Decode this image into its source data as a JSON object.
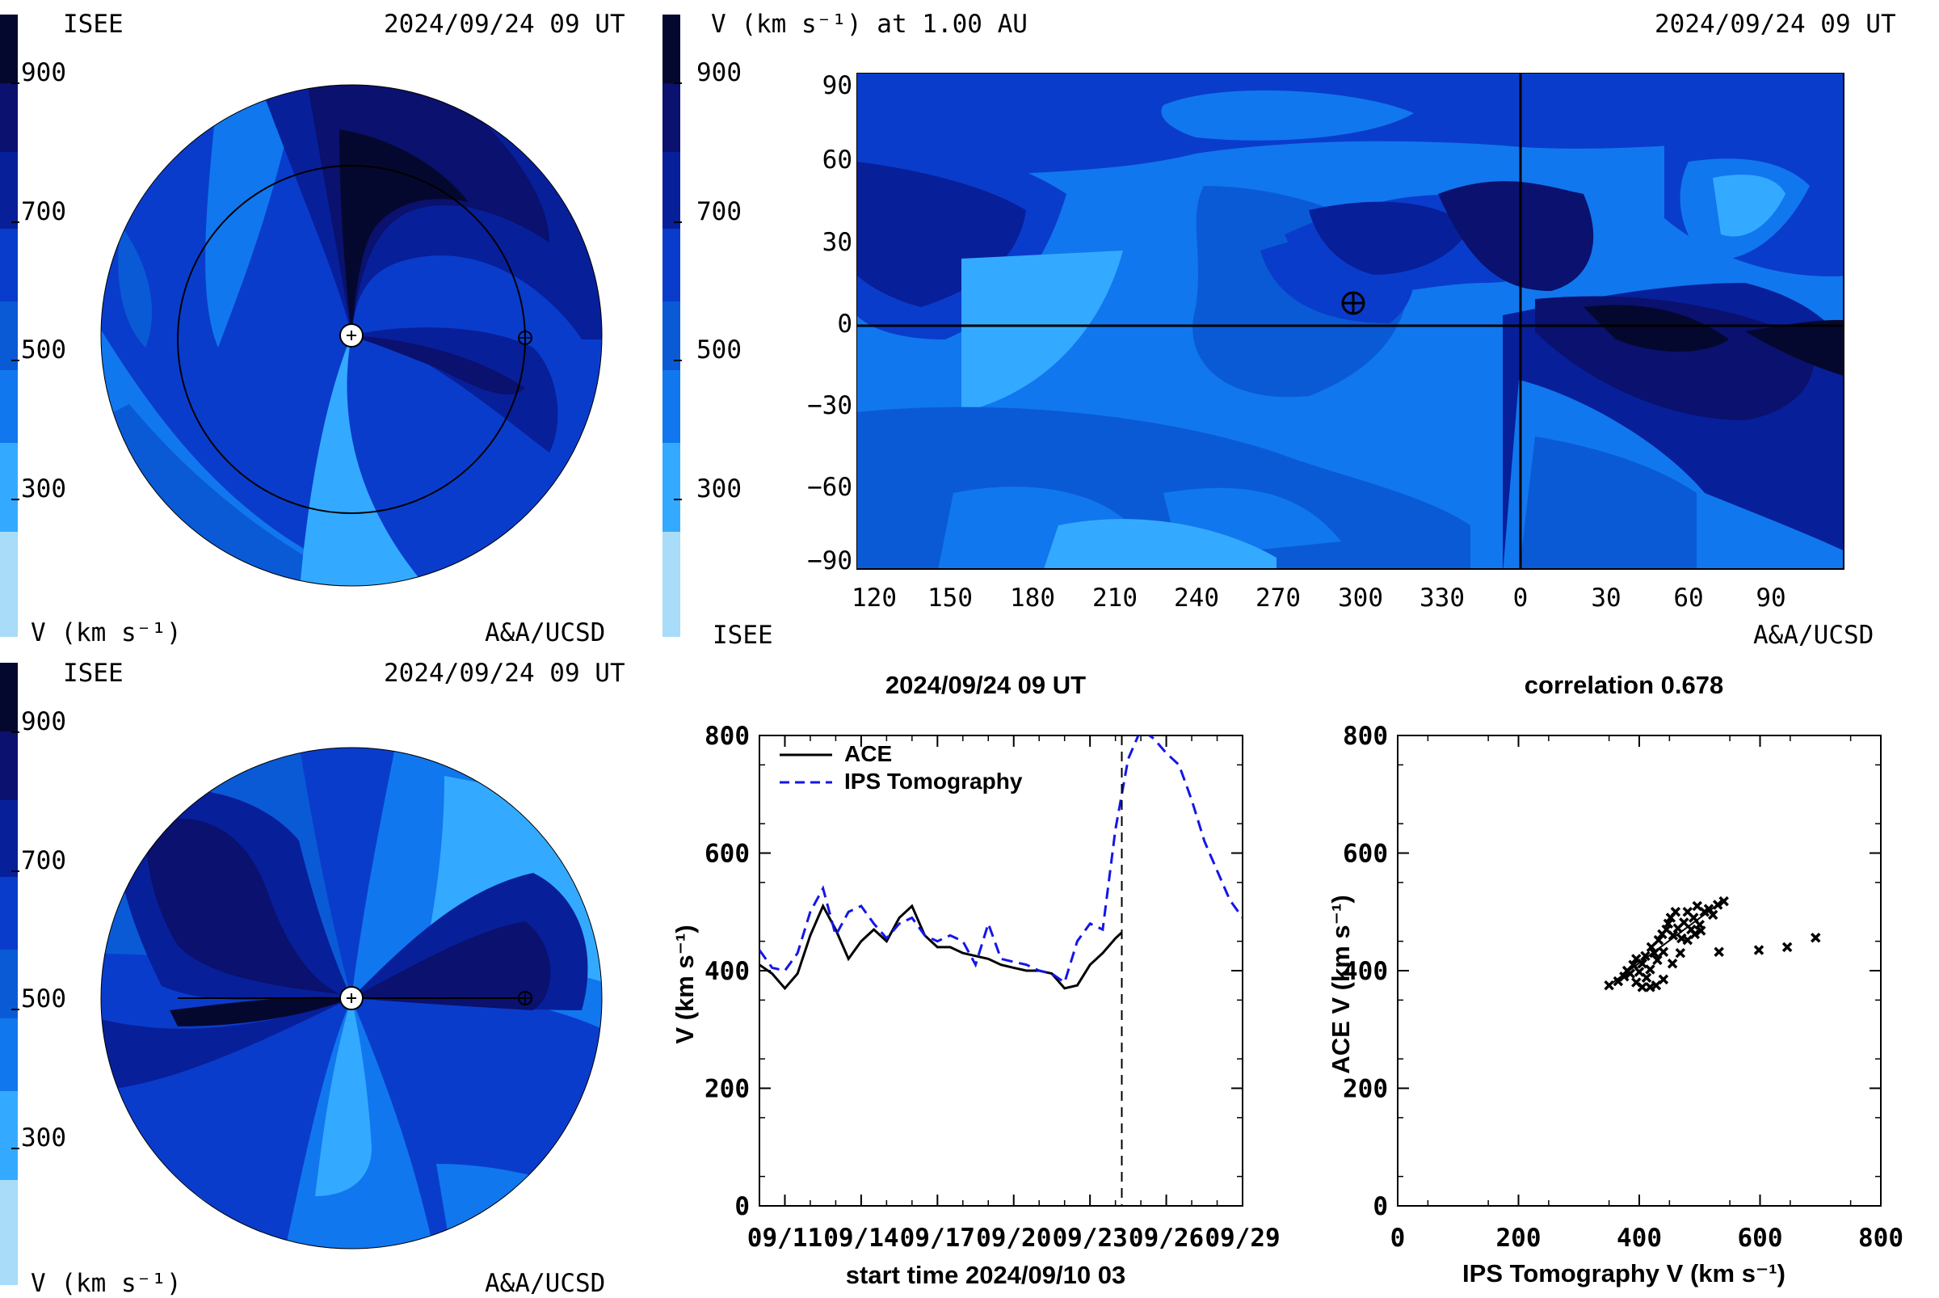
{
  "palette": [
    "#a8dcf8",
    "#33aaff",
    "#1177ee",
    "#0a5ad6",
    "#0a3ccc",
    "#081f9a",
    "#0a116e",
    "#05082e"
  ],
  "colorbar_ticks": [
    "900",
    "700",
    "500",
    "300"
  ],
  "panel_tl": {
    "org": "ISEE",
    "date": "2024/09/24 09 UT",
    "unit": "V (km s⁻¹)",
    "credit": "A&A/UCSD"
  },
  "panel_bl": {
    "org": "ISEE",
    "date": "2024/09/24 09 UT",
    "unit": "V (km s⁻¹)",
    "credit": "A&A/UCSD"
  },
  "panel_tr": {
    "title": "V (km s⁻¹) at 1.00 AU",
    "date": "2024/09/24 09 UT",
    "org": "ISEE",
    "credit": "A&A/UCSD",
    "y_ticks": [
      "90",
      "60",
      "30",
      "0",
      "−30",
      "−60",
      "−90"
    ],
    "x_ticks": [
      "120",
      "150",
      "180",
      "210",
      "240",
      "270",
      "300",
      "330",
      "0",
      "30",
      "60",
      "90"
    ]
  },
  "chart_data": [
    {
      "type": "line",
      "title": "2024/09/24 09 UT",
      "xlabel": "start time 2024/09/10 03",
      "ylabel": "V (km s⁻¹)",
      "ylim": [
        0,
        800
      ],
      "y_ticks": [
        "800",
        "600",
        "400",
        "200",
        "0"
      ],
      "x_tick_labels": [
        "09/11",
        "09/14",
        "09/17",
        "09/20",
        "09/23",
        "09/26",
        "09/29"
      ],
      "legend": "top-left",
      "current_time_marker": "2024/09/24 09 UT",
      "series": [
        {
          "name": "ACE",
          "color": "#000000",
          "style": "solid",
          "x": [
            0.0,
            0.5,
            1.0,
            1.5,
            2.0,
            2.5,
            3.0,
            3.5,
            4.0,
            4.5,
            5.0,
            5.5,
            6.0,
            6.5,
            7.0,
            7.5,
            8.0,
            8.5,
            9.0,
            9.5,
            10.0,
            10.5,
            11.0,
            11.5,
            12.0,
            12.5,
            13.0,
            13.5,
            14.0,
            14.25
          ],
          "y": [
            410,
            395,
            370,
            395,
            460,
            510,
            470,
            420,
            450,
            470,
            450,
            490,
            510,
            460,
            440,
            440,
            430,
            425,
            420,
            410,
            405,
            400,
            400,
            395,
            370,
            375,
            410,
            430,
            455,
            465
          ]
        },
        {
          "name": "IPS Tomography",
          "color": "#1515e8",
          "style": "dashed",
          "x": [
            0.0,
            0.5,
            1.0,
            1.5,
            2.0,
            2.5,
            3.0,
            3.5,
            4.0,
            4.5,
            5.0,
            5.5,
            6.0,
            6.5,
            7.0,
            7.5,
            8.0,
            8.5,
            9.0,
            9.5,
            10.0,
            10.5,
            11.0,
            11.5,
            12.0,
            12.5,
            13.0,
            13.5,
            14.0,
            14.25,
            14.5,
            15.0,
            15.5,
            16.0,
            16.5,
            17.0,
            17.5,
            18.0,
            18.5,
            19.0
          ],
          "y": [
            435,
            405,
            400,
            430,
            500,
            540,
            460,
            500,
            510,
            480,
            455,
            480,
            490,
            460,
            450,
            460,
            450,
            410,
            480,
            420,
            415,
            410,
            400,
            395,
            380,
            450,
            480,
            470,
            640,
            700,
            760,
            810,
            795,
            770,
            750,
            690,
            620,
            570,
            520,
            490
          ]
        }
      ]
    },
    {
      "type": "scatter",
      "title": "correlation 0.678",
      "xlabel": "IPS Tomography V (km s⁻¹)",
      "ylabel": "ACE V (km s⁻¹)",
      "xlim": [
        0,
        800
      ],
      "ylim": [
        0,
        800
      ],
      "x_ticks": [
        "0",
        "200",
        "400",
        "600",
        "800"
      ],
      "y_ticks": [
        "800",
        "600",
        "400",
        "200",
        "0"
      ],
      "points": [
        [
          350,
          375
        ],
        [
          365,
          382
        ],
        [
          375,
          390
        ],
        [
          380,
          400
        ],
        [
          385,
          395
        ],
        [
          390,
          410
        ],
        [
          395,
          420
        ],
        [
          400,
          398
        ],
        [
          405,
          412
        ],
        [
          410,
          425
        ],
        [
          412,
          388
        ],
        [
          418,
          402
        ],
        [
          420,
          440
        ],
        [
          425,
          430
        ],
        [
          430,
          418
        ],
        [
          432,
          452
        ],
        [
          438,
          462
        ],
        [
          440,
          432
        ],
        [
          445,
          470
        ],
        [
          448,
          480
        ],
        [
          452,
          490
        ],
        [
          456,
          460
        ],
        [
          460,
          500
        ],
        [
          464,
          472
        ],
        [
          470,
          455
        ],
        [
          474,
          482
        ],
        [
          480,
          500
        ],
        [
          486,
          470
        ],
        [
          490,
          490
        ],
        [
          496,
          510
        ],
        [
          500,
          478
        ],
        [
          508,
          500
        ],
        [
          515,
          505
        ],
        [
          522,
          495
        ],
        [
          530,
          512
        ],
        [
          540,
          518
        ],
        [
          395,
          380
        ],
        [
          405,
          372
        ],
        [
          418,
          372
        ],
        [
          428,
          375
        ],
        [
          440,
          385
        ],
        [
          455,
          412
        ],
        [
          468,
          430
        ],
        [
          480,
          452
        ],
        [
          492,
          462
        ],
        [
          502,
          468
        ],
        [
          532,
          432
        ],
        [
          598,
          435
        ],
        [
          645,
          440
        ],
        [
          692,
          456
        ]
      ],
      "fit_line": [
        [
          350,
          375
        ],
        [
          540,
          520
        ]
      ]
    }
  ]
}
